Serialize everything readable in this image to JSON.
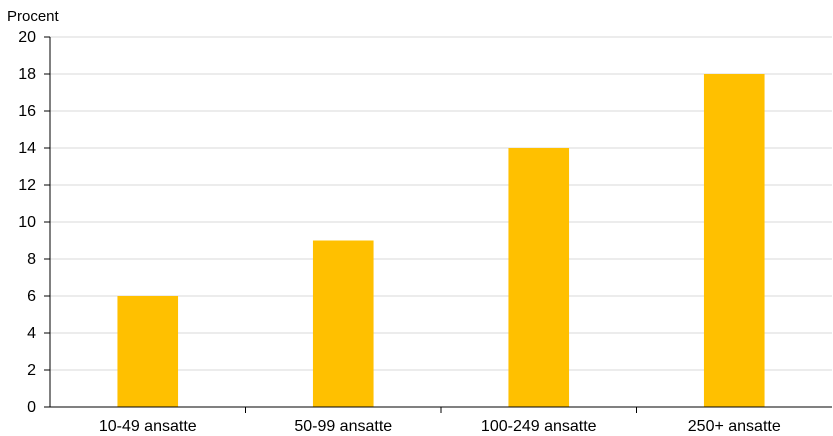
{
  "chart_data": {
    "type": "bar",
    "ylabel": "Procent",
    "categories": [
      "10-49 ansatte",
      "50-99 ansatte",
      "100-249 ansatte",
      "250+ ansatte"
    ],
    "values": [
      6,
      9,
      14,
      18
    ],
    "ylim": [
      0,
      20
    ],
    "yticks": [
      0,
      2,
      4,
      6,
      8,
      10,
      12,
      14,
      16,
      18,
      20
    ],
    "grid": true,
    "bar_color": "#FFC000"
  }
}
